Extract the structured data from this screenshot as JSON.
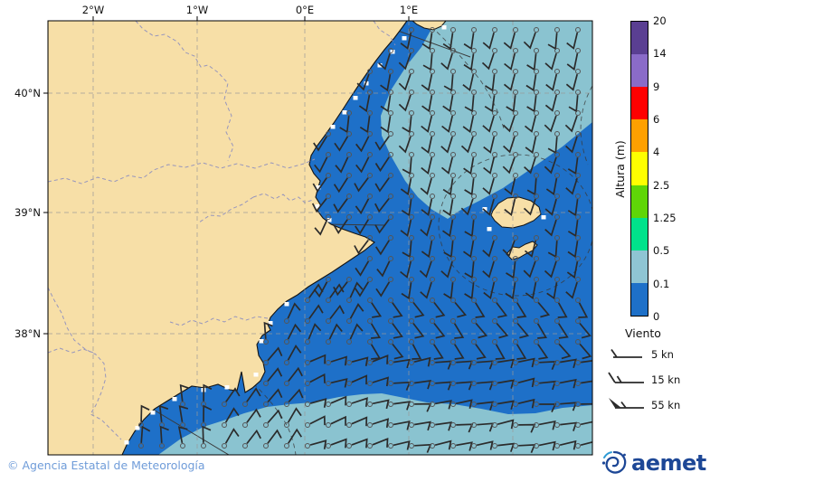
{
  "map": {
    "x_ticks": [
      "2°W",
      "1°W",
      "0°E",
      "1°E"
    ],
    "y_ticks": [
      "40°N",
      "39°N",
      "38°N"
    ],
    "land_color": "#F7DFA7",
    "sea_low_color": "#1E70C8",
    "sea_mid_color": "#8AC3D0",
    "coast_color": "#141414",
    "province_dash_color": "#9191BE",
    "graticule_color": "#999999",
    "sea_line_color": "#3A3A3A",
    "barb_color": "#2B2B2B",
    "barb_circle_color": "#555555"
  },
  "colorbar": {
    "title": "Altura (m)",
    "tick_labels": [
      "0",
      "0.1",
      "0.5",
      "1.25",
      "2.5",
      "4",
      "6",
      "9",
      "14",
      "20"
    ],
    "segment_colors": [
      "#1E70C8",
      "#8FC5D3",
      "#00E28B",
      "#5FD607",
      "#FFFF00",
      "#FFA000",
      "#FF0000",
      "#8A6BC8",
      "#5A3F92"
    ]
  },
  "wind_legend": {
    "title": "Viento",
    "items": [
      {
        "label": "5 kn",
        "type": "half"
      },
      {
        "label": "15 kn",
        "type": "full"
      },
      {
        "label": "55 kn",
        "type": "pennant"
      }
    ]
  },
  "footer": {
    "copyright": "© Agencia Estatal de Meteorología",
    "copyright_color": "#6F9CD9"
  },
  "logo": {
    "text": "aemet",
    "color": "#1D4796",
    "accent": "#2E9BD5"
  }
}
